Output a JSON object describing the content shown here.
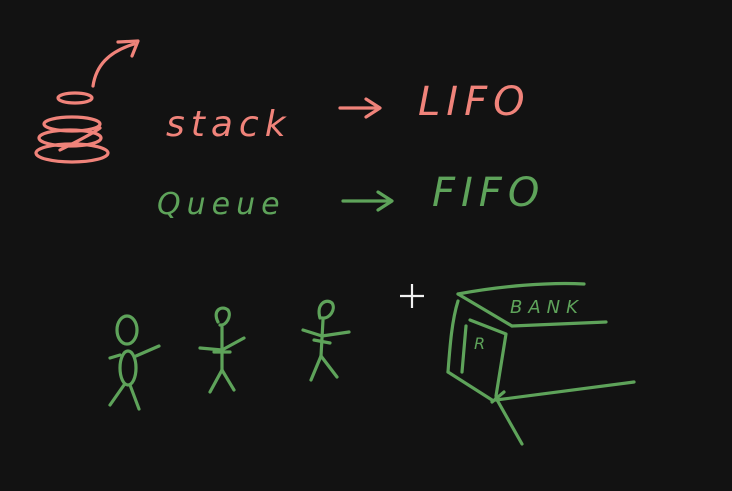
{
  "colors": {
    "background": "#121212",
    "stack_ink": "#f0837a",
    "queue_ink": "#5ea35a",
    "cursor": "#f2f2f2"
  },
  "stack": {
    "label": "stack",
    "meaning": "LIFO"
  },
  "queue": {
    "label": "Queue",
    "meaning": "FIFO"
  },
  "bank": {
    "label": "BANK",
    "counter_mark": "R"
  },
  "cursor_icon": "crosshair-cursor-icon"
}
